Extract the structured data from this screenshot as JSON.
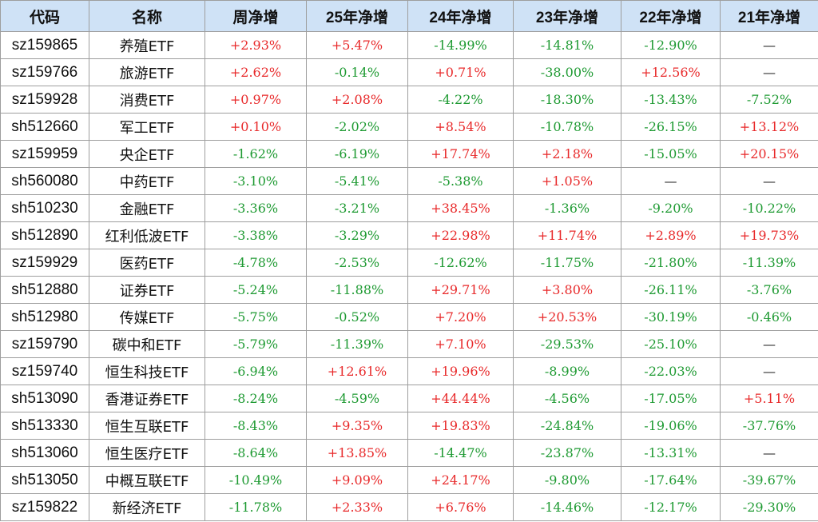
{
  "colors": {
    "positive": "#e8292a",
    "negative": "#1e9a32",
    "header_bg": "#cfe2f6"
  },
  "headers": [
    "代码",
    "名称",
    "周净增",
    "25年净增",
    "24年净增",
    "23年净增",
    "22年净增",
    "21年净增"
  ],
  "rows": [
    {
      "code": "sz159865",
      "name": "养殖ETF",
      "values": [
        "+2.93%",
        "+5.47%",
        "-14.99%",
        "-14.81%",
        "-12.90%",
        "—"
      ]
    },
    {
      "code": "sz159766",
      "name": "旅游ETF",
      "values": [
        "+2.62%",
        "-0.14%",
        "+0.71%",
        "-38.00%",
        "+12.56%",
        "—"
      ]
    },
    {
      "code": "sz159928",
      "name": "消费ETF",
      "values": [
        "+0.97%",
        "+2.08%",
        "-4.22%",
        "-18.30%",
        "-13.43%",
        "-7.52%"
      ]
    },
    {
      "code": "sh512660",
      "name": "军工ETF",
      "values": [
        "+0.10%",
        "-2.02%",
        "+8.54%",
        "-10.78%",
        "-26.15%",
        "+13.12%"
      ]
    },
    {
      "code": "sz159959",
      "name": "央企ETF",
      "values": [
        "-1.62%",
        "-6.19%",
        "+17.74%",
        "+2.18%",
        "-15.05%",
        "+20.15%"
      ]
    },
    {
      "code": "sh560080",
      "name": "中药ETF",
      "values": [
        "-3.10%",
        "-5.41%",
        "-5.38%",
        "+1.05%",
        "—",
        "—"
      ]
    },
    {
      "code": "sh510230",
      "name": "金融ETF",
      "values": [
        "-3.36%",
        "-3.21%",
        "+38.45%",
        "-1.36%",
        "-9.20%",
        "-10.22%"
      ]
    },
    {
      "code": "sh512890",
      "name": "红利低波ETF",
      "values": [
        "-3.38%",
        "-3.29%",
        "+22.98%",
        "+11.74%",
        "+2.89%",
        "+19.73%"
      ]
    },
    {
      "code": "sz159929",
      "name": "医药ETF",
      "values": [
        "-4.78%",
        "-2.53%",
        "-12.62%",
        "-11.75%",
        "-21.80%",
        "-11.39%"
      ]
    },
    {
      "code": "sh512880",
      "name": "证券ETF",
      "values": [
        "-5.24%",
        "-11.88%",
        "+29.71%",
        "+3.80%",
        "-26.11%",
        "-3.76%"
      ]
    },
    {
      "code": "sh512980",
      "name": "传媒ETF",
      "values": [
        "-5.75%",
        "-0.52%",
        "+7.20%",
        "+20.53%",
        "-30.19%",
        "-0.46%"
      ]
    },
    {
      "code": "sz159790",
      "name": "碳中和ETF",
      "values": [
        "-5.79%",
        "-11.39%",
        "+7.10%",
        "-29.53%",
        "-25.10%",
        "—"
      ]
    },
    {
      "code": "sz159740",
      "name": "恒生科技ETF",
      "values": [
        "-6.94%",
        "+12.61%",
        "+19.96%",
        "-8.99%",
        "-22.03%",
        "—"
      ]
    },
    {
      "code": "sh513090",
      "name": "香港证券ETF",
      "values": [
        "-8.24%",
        "-4.59%",
        "+44.44%",
        "-4.56%",
        "-17.05%",
        "+5.11%"
      ]
    },
    {
      "code": "sh513330",
      "name": "恒生互联ETF",
      "values": [
        "-8.43%",
        "+9.35%",
        "+19.83%",
        "-24.84%",
        "-19.06%",
        "-37.76%"
      ]
    },
    {
      "code": "sh513060",
      "name": "恒生医疗ETF",
      "values": [
        "-8.64%",
        "+13.85%",
        "-14.47%",
        "-23.87%",
        "-13.31%",
        "—"
      ]
    },
    {
      "code": "sh513050",
      "name": "中概互联ETF",
      "values": [
        "-10.49%",
        "+9.09%",
        "+24.17%",
        "-9.80%",
        "-17.64%",
        "-39.67%"
      ]
    },
    {
      "code": "sz159822",
      "name": "新经济ETF",
      "values": [
        "-11.78%",
        "+2.33%",
        "+6.76%",
        "-14.46%",
        "-12.17%",
        "-29.30%"
      ]
    }
  ]
}
